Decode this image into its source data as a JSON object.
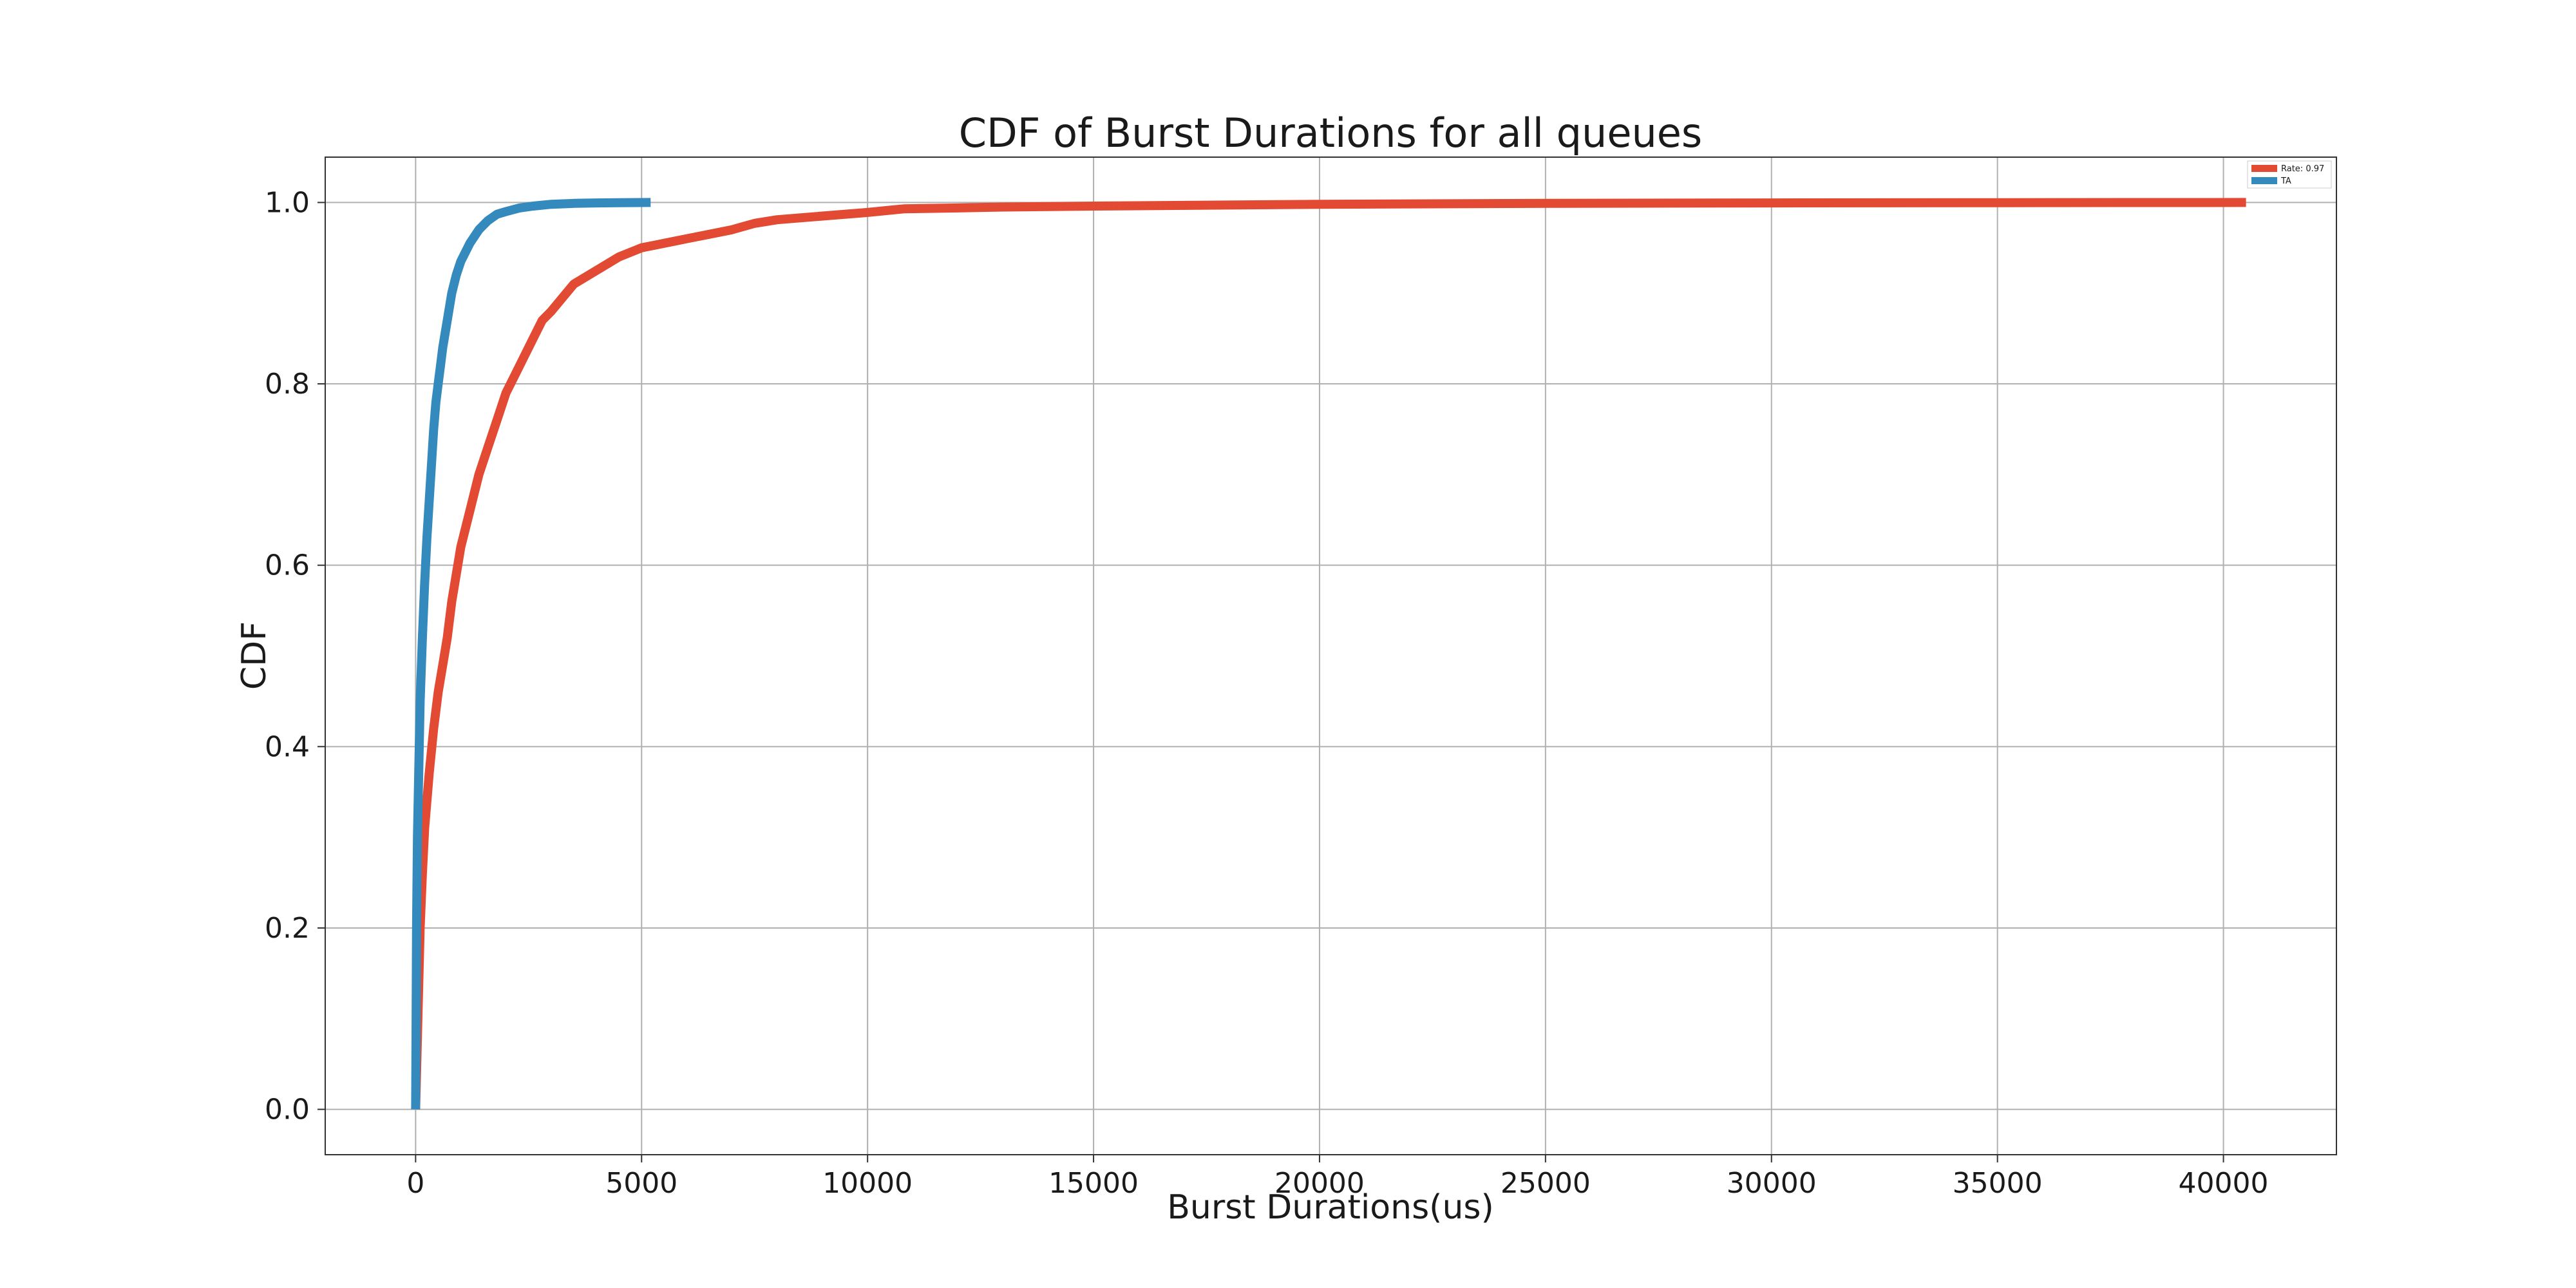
{
  "chart_data": {
    "type": "line",
    "title": "CDF of Burst Durations for all queues",
    "xlabel": "Burst Durations(us)",
    "ylabel": "CDF",
    "xlim": [
      -2000,
      42500
    ],
    "ylim": [
      -0.05,
      1.05
    ],
    "xticks": [
      0,
      5000,
      10000,
      15000,
      20000,
      25000,
      30000,
      35000,
      40000
    ],
    "xtick_labels": [
      "0",
      "5000",
      "10000",
      "15000",
      "20000",
      "25000",
      "30000",
      "35000",
      "40000"
    ],
    "yticks": [
      0.0,
      0.2,
      0.4,
      0.6,
      0.8,
      1.0
    ],
    "ytick_labels": [
      "0.0",
      "0.2",
      "0.4",
      "0.6",
      "0.8",
      "1.0"
    ],
    "grid": true,
    "legend_position": "top-right",
    "series": [
      {
        "name": "Rate: 0.97",
        "color": "#e24a33",
        "x": [
          0,
          50,
          100,
          150,
          200,
          300,
          400,
          500,
          600,
          700,
          800,
          900,
          1000,
          1200,
          1400,
          1600,
          1800,
          2000,
          2200,
          2500,
          2800,
          3000,
          3500,
          4000,
          4500,
          5000,
          5500,
          6000,
          6500,
          7000,
          7500,
          8000,
          9000,
          10000,
          10800,
          12000,
          13000,
          15000,
          17500,
          20000,
          25000,
          30000,
          35000,
          40500
        ],
        "y": [
          0.0,
          0.1,
          0.2,
          0.26,
          0.31,
          0.37,
          0.42,
          0.46,
          0.49,
          0.52,
          0.56,
          0.59,
          0.62,
          0.66,
          0.7,
          0.73,
          0.76,
          0.79,
          0.81,
          0.84,
          0.87,
          0.88,
          0.91,
          0.925,
          0.94,
          0.95,
          0.955,
          0.96,
          0.965,
          0.97,
          0.977,
          0.981,
          0.985,
          0.989,
          0.993,
          0.994,
          0.995,
          0.996,
          0.997,
          0.998,
          0.999,
          0.9995,
          0.9998,
          1.0
        ]
      },
      {
        "name": "TA",
        "color": "#348abd",
        "x": [
          0,
          10,
          20,
          40,
          60,
          80,
          100,
          150,
          200,
          250,
          300,
          350,
          400,
          450,
          500,
          550,
          600,
          700,
          800,
          900,
          1000,
          1200,
          1400,
          1600,
          1800,
          2000,
          2300,
          2600,
          3000,
          3500,
          4000,
          4500,
          5200
        ],
        "y": [
          0.0,
          0.1,
          0.2,
          0.3,
          0.35,
          0.4,
          0.45,
          0.52,
          0.58,
          0.63,
          0.67,
          0.71,
          0.75,
          0.78,
          0.8,
          0.82,
          0.84,
          0.87,
          0.9,
          0.92,
          0.935,
          0.955,
          0.97,
          0.98,
          0.987,
          0.99,
          0.994,
          0.996,
          0.998,
          0.999,
          0.9995,
          0.9998,
          1.0
        ]
      }
    ]
  }
}
